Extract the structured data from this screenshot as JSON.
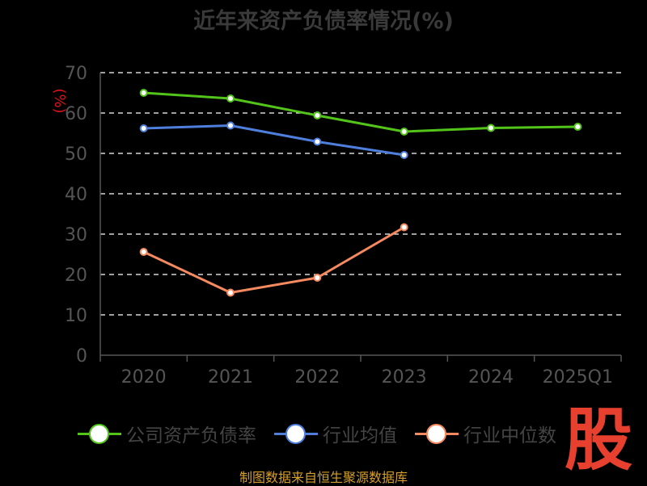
{
  "title": "近年来资产负债率情况(%)",
  "source": "制图数据来自恒生聚源数据库",
  "logo_text": "股",
  "colors": {
    "company": "#52c41a",
    "industry_avg": "#4e7fdc",
    "industry_median": "#f5895f",
    "axis_text": "#555555",
    "unit_text": "#d9131b",
    "grid": "#ffffff"
  },
  "legend": [
    {
      "label": "公司资产负债率",
      "color": "#52c41a"
    },
    {
      "label": "行业均值",
      "color": "#4e7fdc"
    },
    {
      "label": "行业中位数",
      "color": "#f5895f"
    }
  ],
  "chart_data": {
    "type": "line",
    "categories": [
      "2020",
      "2021",
      "2022",
      "2023",
      "2024",
      "2025Q1"
    ],
    "ylabel": "(%)",
    "ylim": [
      0,
      70
    ],
    "yticks": [
      0,
      10,
      20,
      30,
      40,
      50,
      60,
      70
    ],
    "grid": true,
    "legend_position": "bottom",
    "series": [
      {
        "name": "公司资产负债率",
        "values": [
          65.0,
          63.6,
          59.4,
          55.4,
          56.3,
          56.6
        ]
      },
      {
        "name": "行业均值",
        "values": [
          56.2,
          56.9,
          52.9,
          49.6,
          null,
          null
        ]
      },
      {
        "name": "行业中位数",
        "values": [
          25.6,
          15.5,
          19.2,
          31.7,
          null,
          null
        ]
      }
    ]
  }
}
